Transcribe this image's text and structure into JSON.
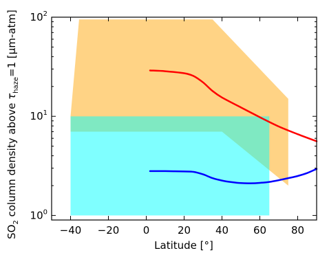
{
  "chart_data": {
    "type": "area",
    "title": "",
    "xlabel": "Latitude [°]",
    "ylabel": {
      "prefix": "SO",
      "prefix_subscript": "2",
      "mid": " column density above ",
      "symbol": "τ",
      "symbol_subscript": "haze",
      "suffix": "=1 [μm-atm]"
    },
    "xlim": [
      -50,
      90
    ],
    "ylim": [
      0.9,
      100
    ],
    "yscale": "log",
    "grid": false,
    "legend": "none",
    "x_ticks": [
      -40,
      -20,
      0,
      20,
      40,
      60,
      80
    ],
    "x_tick_labels": [
      "−40",
      "−20",
      "0",
      "20",
      "40",
      "60",
      "80"
    ],
    "y_ticks": [
      1,
      10,
      100
    ],
    "y_tick_labels": {
      "one": {
        "base": "10",
        "exp": "0"
      },
      "ten": {
        "base": "10",
        "exp": "1"
      },
      "hundred": {
        "base": "10",
        "exp": "2"
      }
    },
    "regions": [
      {
        "id": "orange",
        "color": "#ffb533",
        "opacity": 0.6,
        "polygon": [
          [
            -35.5,
            95
          ],
          [
            35,
            95
          ],
          [
            75,
            15
          ],
          [
            75,
            2
          ],
          [
            40,
            7
          ],
          [
            -40,
            7
          ],
          [
            -40,
            10
          ]
        ]
      },
      {
        "id": "cyan",
        "color": "#00ffff",
        "opacity": 0.5,
        "polygon": [
          [
            -40,
            10
          ],
          [
            65,
            10
          ],
          [
            65,
            1
          ],
          [
            -40,
            1
          ]
        ]
      }
    ],
    "series": [
      {
        "id": "red",
        "color": "#ff0000",
        "x": [
          2,
          10,
          20,
          25,
          30,
          35,
          40,
          50,
          60,
          70,
          80,
          90
        ],
        "y": [
          29,
          28.5,
          27.2,
          25.5,
          22,
          18,
          15.5,
          12.3,
          9.8,
          7.9,
          6.6,
          5.6
        ]
      },
      {
        "id": "blue",
        "color": "#0000ff",
        "x": [
          2,
          10,
          20,
          25,
          30,
          35,
          40,
          45,
          50,
          55,
          60,
          65,
          70,
          75,
          80,
          85,
          90
        ],
        "y": [
          2.8,
          2.8,
          2.78,
          2.75,
          2.6,
          2.38,
          2.25,
          2.17,
          2.12,
          2.11,
          2.13,
          2.18,
          2.27,
          2.38,
          2.5,
          2.68,
          2.95
        ]
      }
    ]
  }
}
